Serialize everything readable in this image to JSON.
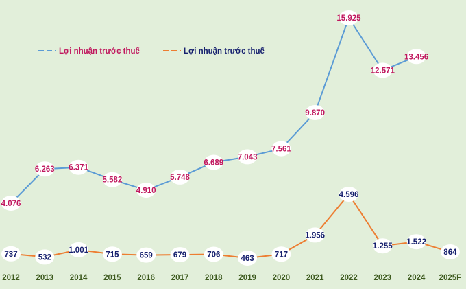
{
  "chart_data": {
    "type": "line",
    "categories": [
      "2012",
      "2013",
      "2014",
      "2015",
      "2016",
      "2017",
      "2018",
      "2019",
      "2020",
      "2021",
      "2022",
      "2023",
      "2024",
      "2025F"
    ],
    "series": [
      {
        "name": "Lợi nhuận trước thuế",
        "color": "#5b9bd5",
        "label_color": "#c0185e",
        "values": [
          4076,
          6263,
          6371,
          5582,
          4910,
          5748,
          6689,
          7043,
          7561,
          9870,
          15925,
          12571,
          13456,
          null
        ],
        "labels": [
          "4.076",
          "6.263",
          "6.371",
          "5.582",
          "4.910",
          "5.748",
          "6.689",
          "7.043",
          "7.561",
          "9.870",
          "15.925",
          "12.571",
          "13.456",
          ""
        ]
      },
      {
        "name": "Lợi nhuận trước thuế",
        "color": "#ed7d31",
        "label_color": "#16206e",
        "values": [
          737,
          532,
          1001,
          715,
          659,
          679,
          706,
          463,
          717,
          1956,
          4596,
          1255,
          1522,
          864
        ],
        "labels": [
          "737",
          "532",
          "1.001",
          "715",
          "659",
          "679",
          "706",
          "463",
          "717",
          "1.956",
          "4.596",
          "1.255",
          "1.522",
          "864"
        ]
      }
    ],
    "legend_position": "top-left",
    "grid": false
  }
}
